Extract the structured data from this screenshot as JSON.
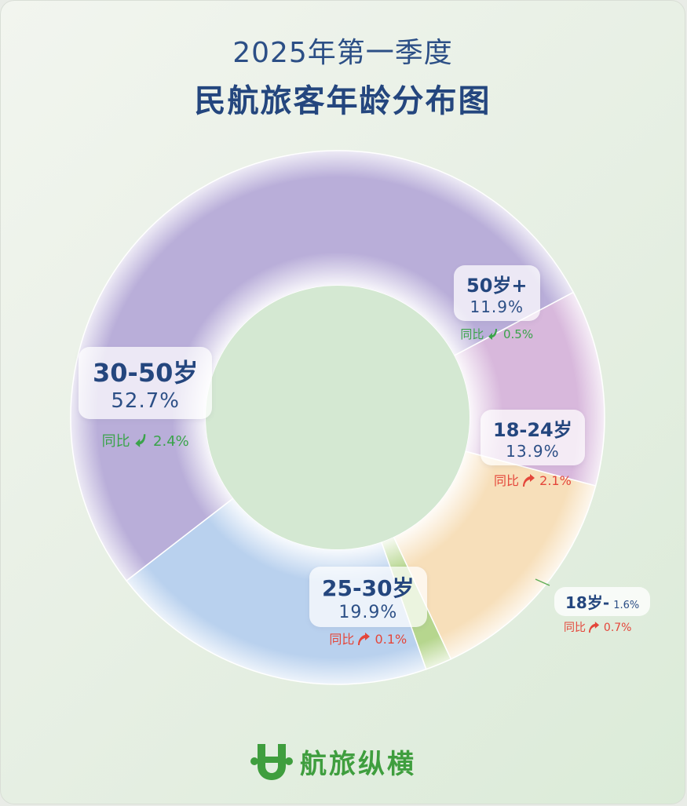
{
  "header": {
    "line1": "2025年第一季度",
    "line2": "民航旅客年龄分布图"
  },
  "yoy_prefix": "同比",
  "chart_data": {
    "type": "pie",
    "title": "2025年第一季度 民航旅客年龄分布图",
    "unit": "%",
    "slices": [
      {
        "label": "50岁+",
        "value": 11.9,
        "display": "11.9%",
        "yoy": "0.5%",
        "yoy_dir": "down",
        "color": "#d8b8dc"
      },
      {
        "label": "18-24岁",
        "value": 13.9,
        "display": "13.9%",
        "yoy": "2.1%",
        "yoy_dir": "up",
        "color": "#f7dfba"
      },
      {
        "label": "18岁-",
        "value": 1.6,
        "display": "1.6%",
        "yoy": "0.7%",
        "yoy_dir": "up",
        "color": "#b6d68e"
      },
      {
        "label": "25-30岁",
        "value": 19.9,
        "display": "19.9%",
        "yoy": "0.1%",
        "yoy_dir": "up",
        "color": "#b9d1ee"
      },
      {
        "label": "30-50岁",
        "value": 52.7,
        "display": "52.7%",
        "yoy": "2.4%",
        "yoy_dir": "down",
        "color": "#b9aed9"
      }
    ],
    "colors": {
      "up": "#e4463a",
      "down": "#3aa34a",
      "center": "#d4e8d2"
    }
  },
  "brand": {
    "name": "航旅纵横",
    "logo_icon": "h-logo-icon"
  }
}
